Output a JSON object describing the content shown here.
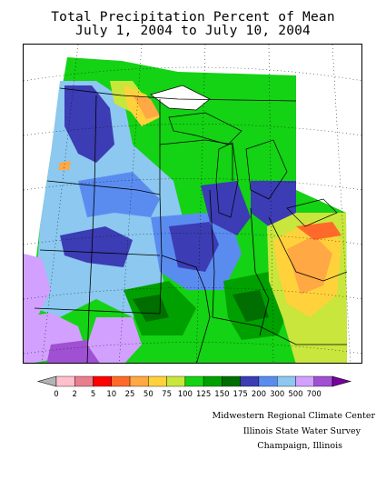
{
  "title": {
    "line1": "Total Precipitation Percent of Mean",
    "line2": "July 1, 2004 to July 10, 2004"
  },
  "legend": {
    "labels": [
      "0",
      "2",
      "5",
      "10",
      "25",
      "50",
      "75",
      "100",
      "125",
      "150",
      "175",
      "200",
      "300",
      "500",
      "700"
    ],
    "colors": [
      "#b4b4b4",
      "#ffc0cb",
      "#e87f8c",
      "#ff0000",
      "#ff6a2a",
      "#ffa844",
      "#ffd23c",
      "#c8e63c",
      "#14d214",
      "#00a000",
      "#006e00",
      "#3c3cb4",
      "#5a8cf0",
      "#8cc8f0",
      "#d2a0ff",
      "#a050d2",
      "#7800a0"
    ]
  },
  "credits": {
    "line1": "Midwestern Regional Climate Center",
    "line2": "Illinois State Water Survey",
    "line3": "Champaign, Illinois"
  }
}
